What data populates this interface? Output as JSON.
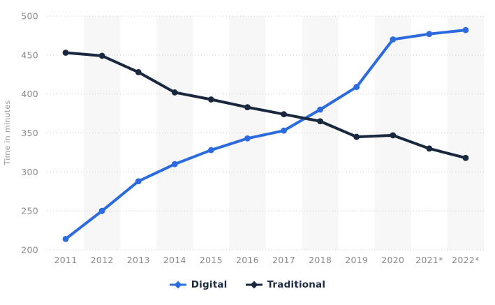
{
  "chart_data": {
    "type": "line",
    "ylabel": "Time in minutes",
    "ylim": [
      200,
      500
    ],
    "yticks": [
      200,
      250,
      300,
      350,
      400,
      450,
      500
    ],
    "grid": "horizontal dotted gridlines",
    "legend_position": "bottom-center",
    "plot_style": {
      "alternating_column_stripes": true,
      "marker": "filled-circle",
      "line_width": 4
    },
    "categories": [
      "2011",
      "2012",
      "2013",
      "2014",
      "2015",
      "2016",
      "2017",
      "2018",
      "2019",
      "2020",
      "2021*",
      "2022*"
    ],
    "series": [
      {
        "name": "Digital",
        "color": "#2c6bdf",
        "values": [
          214,
          250,
          288,
          310,
          328,
          343,
          353,
          380,
          409,
          470,
          477,
          482
        ]
      },
      {
        "name": "Traditional",
        "color": "#19283e",
        "values": [
          453,
          449,
          428,
          402,
          393,
          383,
          374,
          365,
          345,
          347,
          330,
          318
        ]
      }
    ],
    "colors": {
      "background": "#ffffff",
      "column_stripe": "#f7f7f7",
      "gridline": "#cccccc",
      "tick_text": "#8a8a8a",
      "axis_title_text": "#999999",
      "legend_text": "#1c2b41"
    }
  }
}
